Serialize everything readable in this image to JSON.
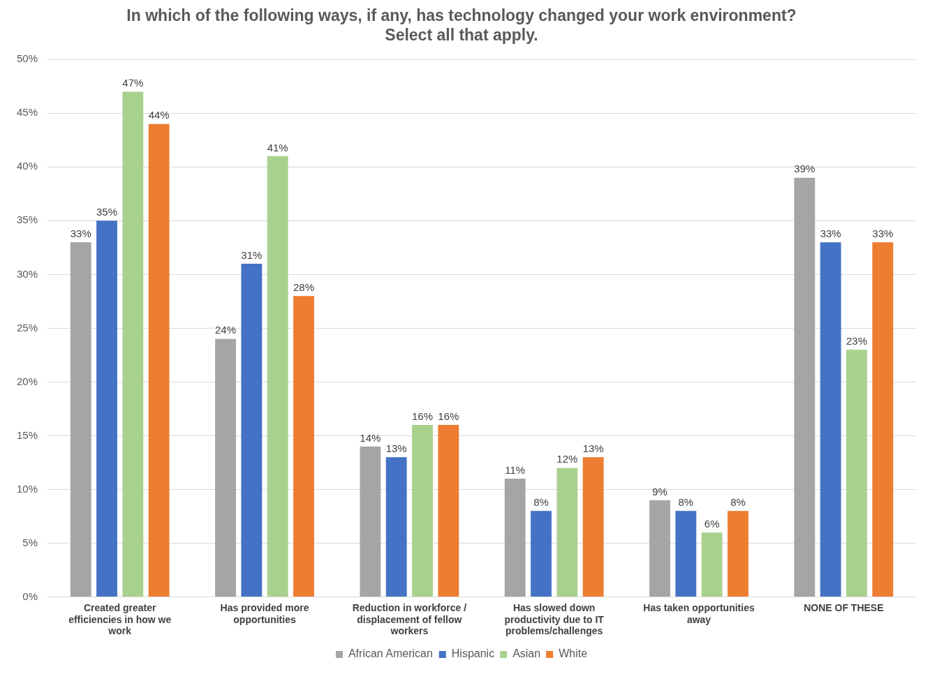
{
  "chart_data": {
    "type": "bar",
    "title": "In which of the following ways, if any, has technology changed your work environment?\nSelect all that apply.",
    "categories": [
      "Created greater efficiencies in how we work",
      "Has provided more opportunities",
      "Reduction in workforce / displacement of fellow workers",
      "Has slowed down productivity due to IT problems/challenges",
      "Has taken opportunities away",
      "NONE OF THESE"
    ],
    "series": [
      {
        "name": "African American",
        "color": "#a5a5a5",
        "values": [
          33,
          24,
          14,
          11,
          9,
          39
        ],
        "value_labels": [
          "33%",
          "24%",
          "14%",
          "11%",
          "9%",
          "39%"
        ]
      },
      {
        "name": "Hispanic",
        "color": "#4472c4",
        "values": [
          35,
          31,
          13,
          8,
          8,
          33
        ],
        "value_labels": [
          "35%",
          "31%",
          "13%",
          "8%",
          "8%",
          "33%"
        ]
      },
      {
        "name": "Asian",
        "color": "#a9d18e",
        "values": [
          47,
          41,
          16,
          12,
          6,
          23
        ],
        "value_labels": [
          "47%",
          "41%",
          "16%",
          "12%",
          "6%",
          "23%"
        ]
      },
      {
        "name": "White",
        "color": "#ed7d31",
        "values": [
          44,
          28,
          16,
          13,
          8,
          33
        ],
        "value_labels": [
          "44%",
          "28%",
          "16%",
          "13%",
          "8%",
          "33%"
        ]
      }
    ],
    "ylim": [
      0,
      50
    ],
    "yticks": [
      {
        "value": 0,
        "label": "0%"
      },
      {
        "value": 5,
        "label": "5%"
      },
      {
        "value": 10,
        "label": "10%"
      },
      {
        "value": 15,
        "label": "15%"
      },
      {
        "value": 20,
        "label": "20%"
      },
      {
        "value": 25,
        "label": "25%"
      },
      {
        "value": 30,
        "label": "30%"
      },
      {
        "value": 35,
        "label": "35%"
      },
      {
        "value": 40,
        "label": "40%"
      },
      {
        "value": 45,
        "label": "45%"
      },
      {
        "value": 50,
        "label": "50%"
      }
    ],
    "grid": "y",
    "legend": "bottom"
  }
}
